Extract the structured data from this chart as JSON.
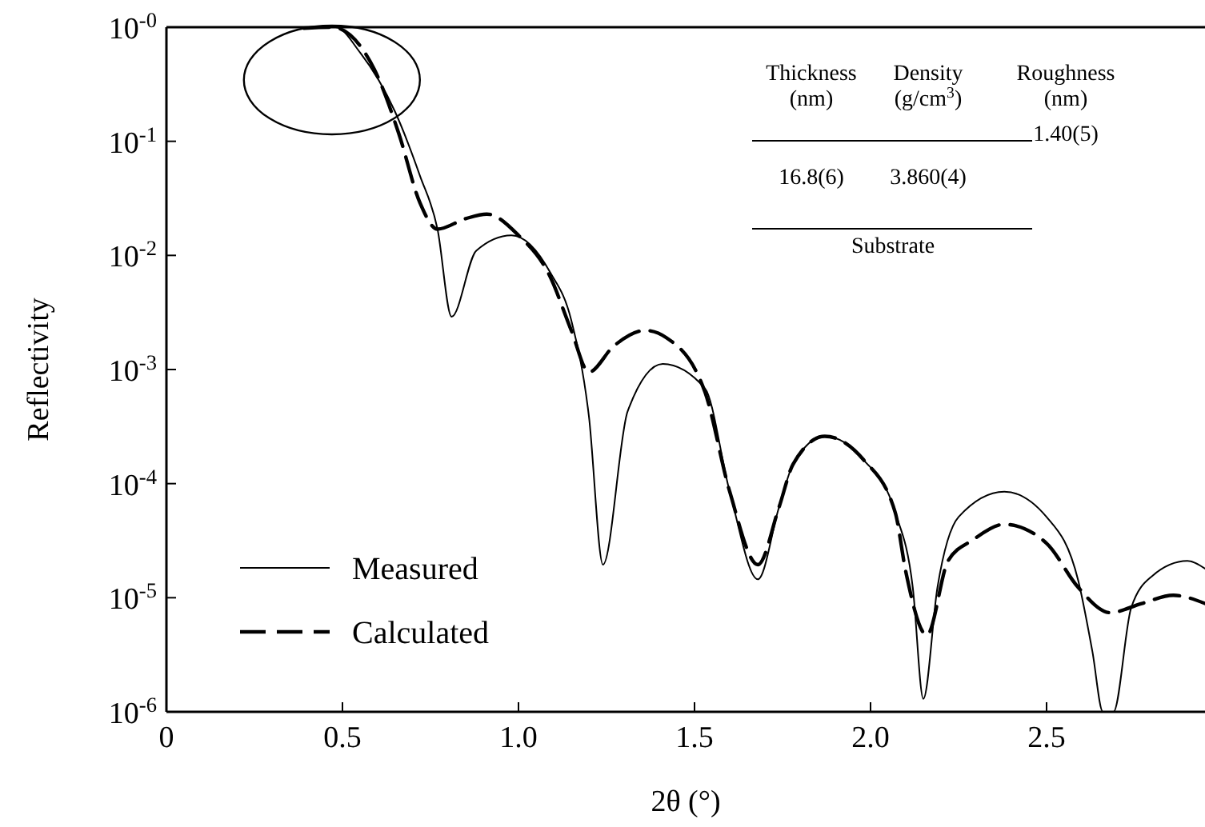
{
  "chart_data": {
    "type": "line",
    "xlabel": "2θ (°)",
    "ylabel": "Reflectivity",
    "log": "y",
    "xlim": [
      0,
      2.95
    ],
    "ylim": [
      1e-06,
      1
    ],
    "xticks": [
      0,
      0.5,
      {
        "value": 1,
        "label": "1.0"
      },
      1.5,
      {
        "value": 2,
        "label": "2.0"
      },
      2.5
    ],
    "yticks": [
      {
        "value": 1,
        "label": "10$^{-0}$"
      },
      {
        "value": 0.1,
        "label": "10$^{-1}$"
      },
      {
        "value": 0.01,
        "label": "10$^{-2}$"
      },
      {
        "value": 0.001,
        "label": "10$^{-3}$"
      },
      {
        "value": 0.0001,
        "label": "10$^{-4}$"
      },
      {
        "value": 1e-05,
        "label": "10$^{-5}$"
      },
      {
        "value": 1e-06,
        "label": "10$^{-6}$"
      }
    ],
    "grid": false,
    "legend": "bottom left",
    "marker": "none",
    "series": [
      {
        "name": "Measured",
        "color": "#000000",
        "line_style": "solid",
        "x": [
          0.47,
          0.48,
          0.55,
          0.65,
          0.72,
          0.77,
          0.81,
          0.88,
          0.98,
          1.09,
          1.15,
          1.2,
          1.24,
          1.31,
          1.41,
          1.53,
          1.6,
          1.68,
          1.74,
          1.78,
          1.87,
          1.98,
          2.07,
          2.12,
          2.15,
          2.19,
          2.25,
          2.38,
          2.5,
          2.59,
          2.63,
          2.66,
          2.69,
          2.74,
          2.8,
          2.9,
          2.95
        ],
        "values": [
          1,
          1,
          0.6,
          0.18,
          0.05,
          0.017,
          0.0029,
          0.011,
          0.015,
          0.0071,
          0.0027,
          0.00039,
          1.95e-05,
          0.00043,
          0.00112,
          0.00068,
          8.5e-05,
          1.45e-05,
          6.2e-05,
          0.000148,
          0.00026,
          0.000162,
          5.6e-05,
          1.23e-05,
          1.3e-06,
          1.23e-05,
          5.1e-05,
          8.5e-05,
          5.1e-05,
          1.41e-05,
          3.4e-06,
          1e-06,
          1e-06,
          8.1e-06,
          1.55e-05,
          2.1e-05,
          1.8e-05
        ]
      },
      {
        "name": "Calculated",
        "color": "#000000",
        "line_style": "dashed",
        "x": [
          0.39,
          0.47,
          0.59,
          0.66,
          0.72,
          0.77,
          0.85,
          0.91,
          1.0,
          1.09,
          1.15,
          1.2,
          1.27,
          1.36,
          1.42,
          1.53,
          1.6,
          1.68,
          1.74,
          1.78,
          1.87,
          1.98,
          2.07,
          2.1,
          2.16,
          2.22,
          2.29,
          2.38,
          2.5,
          2.59,
          2.68,
          2.77,
          2.86,
          2.95
        ],
        "values": [
          0.98,
          1,
          0.43,
          0.117,
          0.029,
          0.017,
          0.021,
          0.023,
          0.015,
          0.0065,
          0.0022,
          0.00095,
          0.0016,
          0.0022,
          0.0019,
          0.00063,
          8.5e-05,
          1.95e-05,
          6.2e-05,
          0.000148,
          0.00026,
          0.000162,
          5.6e-05,
          1.7e-05,
          4.7e-06,
          2.1e-05,
          3.2e-05,
          4.4e-05,
          3e-05,
          1.23e-05,
          7.4e-06,
          8.9e-06,
          1.05e-05,
          8.9e-06
        ]
      }
    ],
    "annotations": [
      "Thickness",
      "(nm)",
      "Density",
      "(g/cm$^{3}$)",
      "Roughness",
      "(nm)",
      "1.40(5)",
      "16.8(6)",
      "3.860(4)",
      "Substrate"
    ]
  }
}
